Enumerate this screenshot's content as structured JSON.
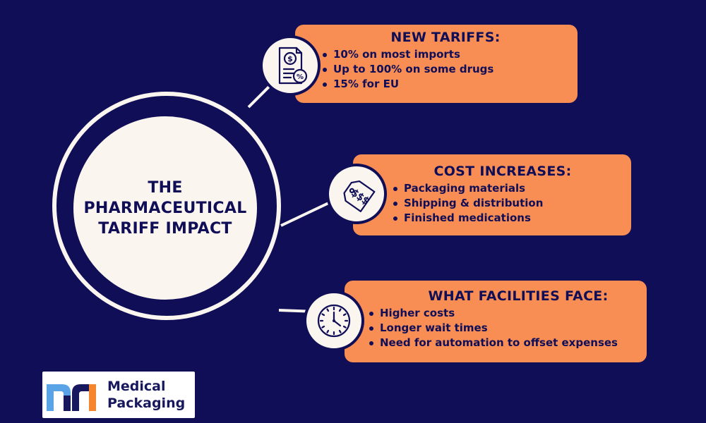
{
  "colors": {
    "background": "#0f0e57",
    "cream": "#fbf5ef",
    "card": "#f98e55",
    "logo_blue": "#5aa3e6",
    "logo_orange": "#f5862e",
    "logo_navy": "#17185e"
  },
  "center": {
    "title_line1": "THE",
    "title_line2": "PHARMACEUTICAL",
    "title_line3": "TARIFF IMPACT"
  },
  "cards": [
    {
      "title": "NEW TARIFFS:",
      "icon": "tariff-document-icon",
      "items": [
        "10% on most imports",
        "Up to 100% on some drugs",
        "15% for EU"
      ]
    },
    {
      "title": "COST INCREASES:",
      "icon": "price-tag-icon",
      "items": [
        "Packaging materials",
        "Shipping & distribution",
        "Finished medications"
      ]
    },
    {
      "title": "WHAT FACILITIES FACE:",
      "icon": "clock-icon",
      "items": [
        "Higher costs",
        "Longer wait times",
        "Need for automation to offset expenses"
      ]
    }
  ],
  "logo": {
    "line1": "Medical",
    "line2": "Packaging"
  }
}
